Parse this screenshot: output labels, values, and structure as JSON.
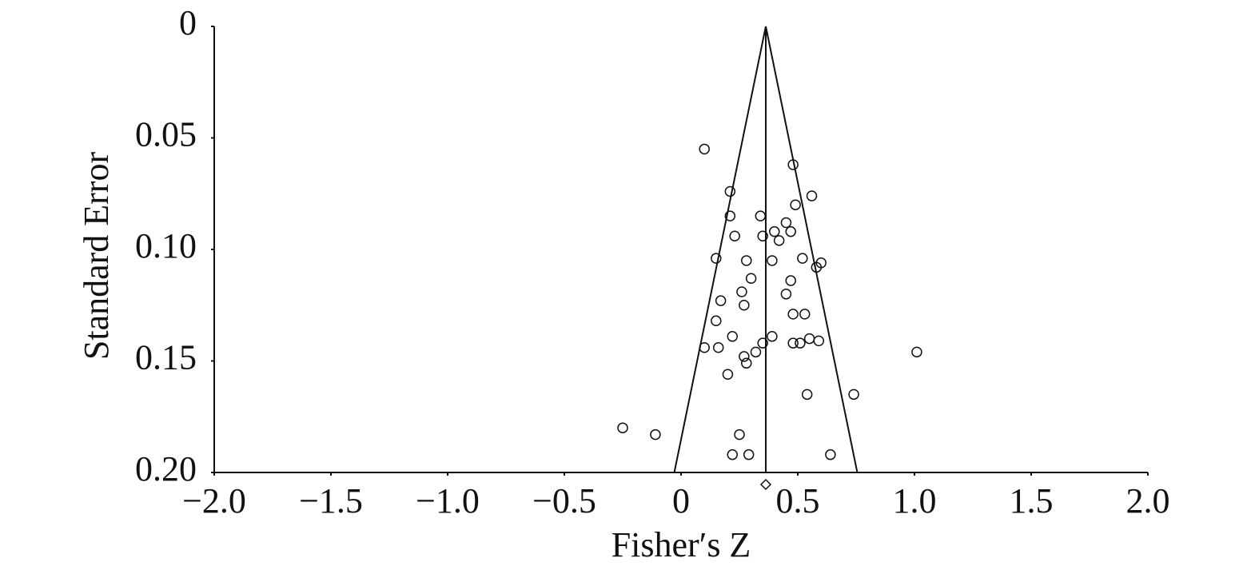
{
  "chart_data": {
    "type": "funnel",
    "xlabel": "Fisher′s Z",
    "ylabel": "Standard Error",
    "xlim": [
      -2.0,
      2.0
    ],
    "ylim": [
      0,
      0.2
    ],
    "y_inverted": true,
    "xticks": [
      {
        "value": -2.0,
        "label": "−2.0"
      },
      {
        "value": -1.5,
        "label": "−1.5"
      },
      {
        "value": -1.0,
        "label": "−1.0"
      },
      {
        "value": -0.5,
        "label": "−0.5"
      },
      0,
      0.5,
      {
        "value": 1.0,
        "label": "1.0"
      },
      1.5,
      {
        "value": 2.0,
        "label": "2.0"
      }
    ],
    "yticks": [
      0,
      0.05,
      {
        "value": 0.1,
        "label": "0.10"
      },
      0.15,
      {
        "value": 0.2,
        "label": "0.20"
      }
    ],
    "summary_estimate": 0.363,
    "funnel_limits": [
      -0.029,
      0.755
    ],
    "color": "#111111",
    "x": [
      0.1,
      0.48,
      0.21,
      0.56,
      0.49,
      0.21,
      0.34,
      0.45,
      0.4,
      0.47,
      0.23,
      0.35,
      0.42,
      0.15,
      0.52,
      0.28,
      0.39,
      0.6,
      0.58,
      0.3,
      0.47,
      0.26,
      0.45,
      0.17,
      0.27,
      0.15,
      0.48,
      0.53,
      0.22,
      0.39,
      0.35,
      0.55,
      0.59,
      0.48,
      0.51,
      0.1,
      0.16,
      0.32,
      0.27,
      0.28,
      1.01,
      0.2,
      0.54,
      0.74,
      -0.25,
      -0.11,
      0.25,
      0.22,
      0.29,
      0.64
    ],
    "values": [
      0.055,
      0.062,
      0.074,
      0.076,
      0.08,
      0.085,
      0.085,
      0.088,
      0.092,
      0.092,
      0.094,
      0.094,
      0.096,
      0.104,
      0.104,
      0.105,
      0.105,
      0.106,
      0.108,
      0.113,
      0.114,
      0.119,
      0.12,
      0.123,
      0.125,
      0.132,
      0.129,
      0.129,
      0.139,
      0.139,
      0.142,
      0.14,
      0.141,
      0.142,
      0.142,
      0.144,
      0.144,
      0.146,
      0.148,
      0.151,
      0.146,
      0.156,
      0.165,
      0.165,
      0.18,
      0.183,
      0.183,
      0.192,
      0.192,
      0.192
    ]
  }
}
